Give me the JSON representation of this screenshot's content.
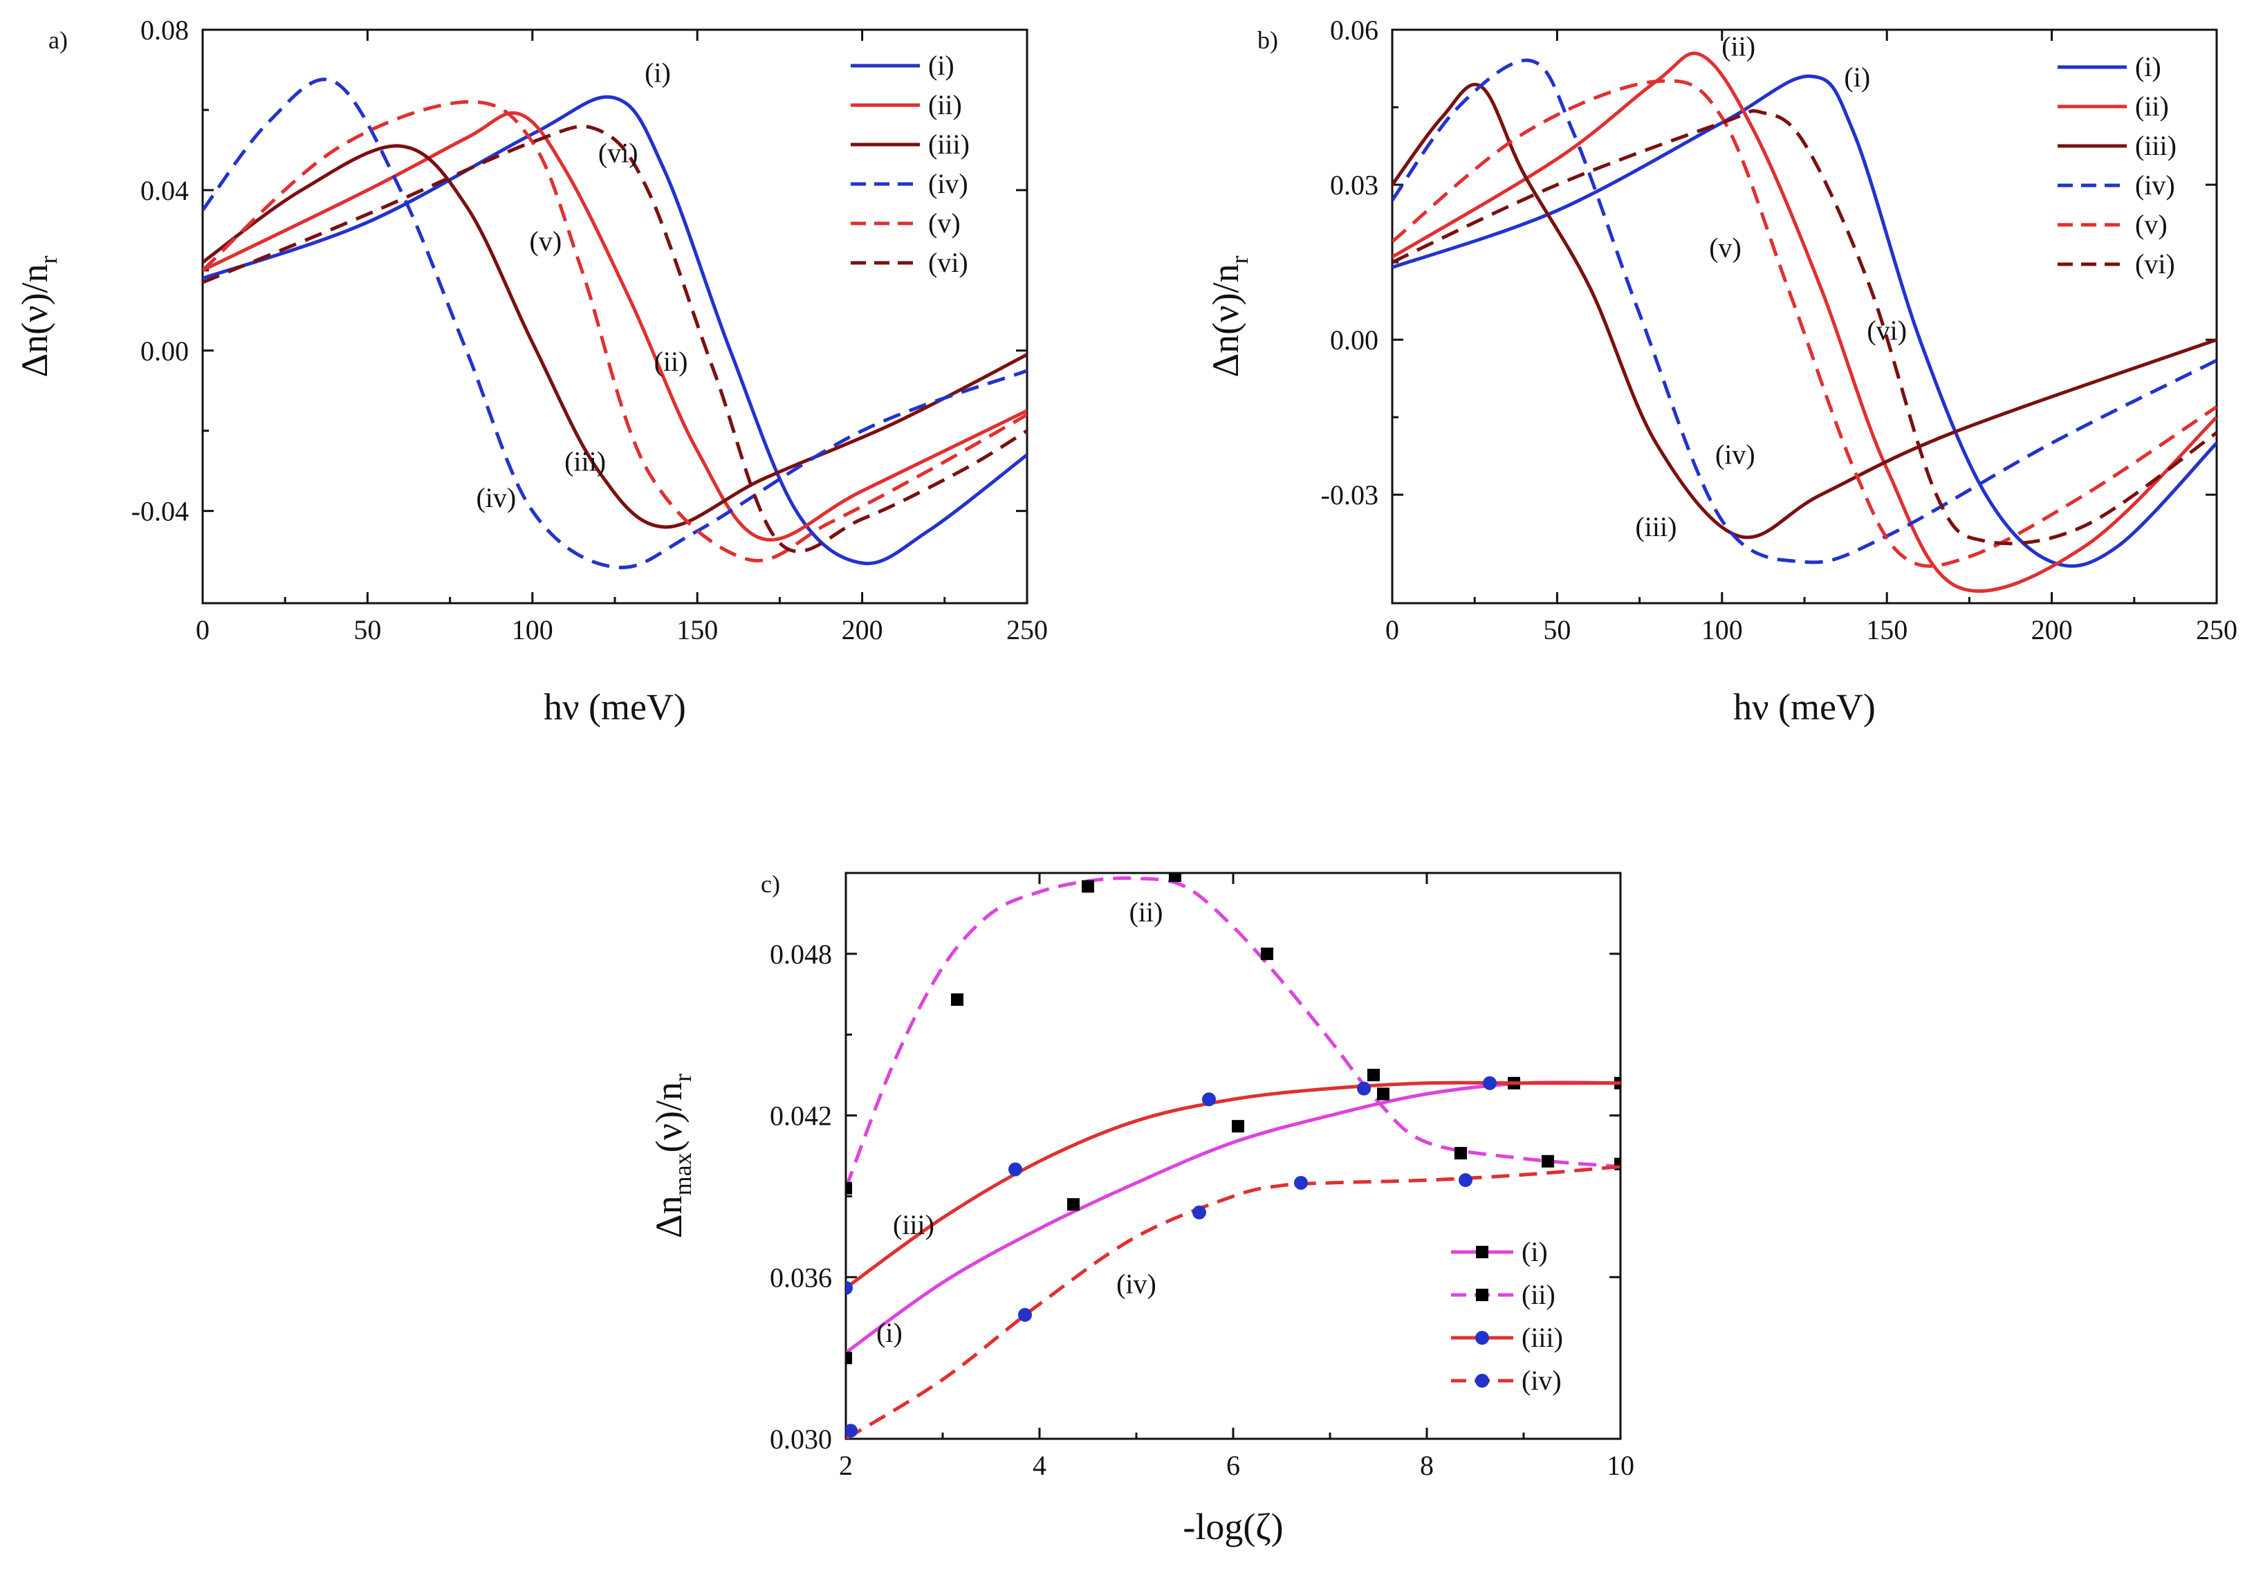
{
  "colors": {
    "blue": "#2233cc",
    "red": "#e03030",
    "darkred": "#7a1010",
    "magenta": "#dd44dd",
    "black": "#000000"
  },
  "chart_data": [
    {
      "panel": "a)",
      "type": "line",
      "xlabel": "hν (meV)",
      "ylabel": "Δn(ν)/n",
      "ylabel_sub": "r",
      "xlim": [
        0,
        250
      ],
      "ylim": [
        -0.063,
        0.08
      ],
      "xticks": [
        0,
        50,
        100,
        150,
        200,
        250
      ],
      "xtick_labels": [
        "0",
        "50",
        "100",
        "150",
        "200",
        "250"
      ],
      "yticks": [
        -0.04,
        0.0,
        0.04,
        0.08
      ],
      "ytick_labels": [
        "-0.04",
        "0.00",
        "0.04",
        "0.08"
      ],
      "legend_position": "top-right",
      "series": [
        {
          "name": "(i)",
          "color": "blue",
          "dash": false,
          "x": [
            0,
            50,
            100,
            125,
            140,
            160,
            180,
            200,
            220,
            250
          ],
          "y": [
            0.018,
            0.032,
            0.054,
            0.063,
            0.045,
            0.0,
            -0.04,
            -0.053,
            -0.045,
            -0.026
          ]
        },
        {
          "name": "(ii)",
          "color": "red",
          "dash": false,
          "x": [
            0,
            50,
            80,
            96,
            110,
            130,
            150,
            170,
            200,
            250
          ],
          "y": [
            0.02,
            0.04,
            0.053,
            0.059,
            0.045,
            0.012,
            -0.025,
            -0.047,
            -0.035,
            -0.015
          ]
        },
        {
          "name": "(iii)",
          "color": "darkred",
          "dash": false,
          "x": [
            0,
            30,
            60,
            80,
            100,
            120,
            140,
            170,
            210,
            250
          ],
          "y": [
            0.022,
            0.04,
            0.051,
            0.036,
            0.002,
            -0.03,
            -0.044,
            -0.032,
            -0.018,
            -0.001
          ]
        },
        {
          "name": "(iv)",
          "color": "blue",
          "dash": true,
          "x": [
            0,
            20,
            40,
            60,
            80,
            100,
            125,
            150,
            200,
            250
          ],
          "y": [
            0.035,
            0.057,
            0.067,
            0.04,
            0.0,
            -0.04,
            -0.054,
            -0.045,
            -0.02,
            -0.005
          ]
        },
        {
          "name": "(v)",
          "color": "red",
          "dash": true,
          "x": [
            0,
            40,
            80,
            100,
            115,
            135,
            165,
            190,
            220,
            250
          ],
          "y": [
            0.02,
            0.05,
            0.062,
            0.052,
            0.02,
            -0.03,
            -0.052,
            -0.043,
            -0.03,
            -0.016
          ]
        },
        {
          "name": "(vi)",
          "color": "darkred",
          "dash": true,
          "x": [
            0,
            50,
            100,
            120,
            135,
            155,
            175,
            200,
            230,
            250
          ],
          "y": [
            0.017,
            0.034,
            0.052,
            0.055,
            0.04,
            -0.005,
            -0.048,
            -0.042,
            -0.03,
            -0.02
          ]
        }
      ],
      "annotations": [
        {
          "text": "(i)",
          "x": 138,
          "y": 0.067
        },
        {
          "text": "(vi)",
          "x": 126,
          "y": 0.047
        },
        {
          "text": "(v)",
          "x": 104,
          "y": 0.025
        },
        {
          "text": "(ii)",
          "x": 142,
          "y": -0.005
        },
        {
          "text": "(iii)",
          "x": 116,
          "y": -0.03
        },
        {
          "text": "(iv)",
          "x": 89,
          "y": -0.039
        }
      ]
    },
    {
      "panel": "b)",
      "type": "line",
      "xlabel": "hν (meV)",
      "ylabel": "Δn(ν)/n",
      "ylabel_sub": "r",
      "xlim": [
        0,
        250
      ],
      "ylim": [
        -0.051,
        0.06
      ],
      "xticks": [
        0,
        50,
        100,
        150,
        200,
        250
      ],
      "xtick_labels": [
        "0",
        "50",
        "100",
        "150",
        "200",
        "250"
      ],
      "yticks": [
        -0.03,
        0.0,
        0.03,
        0.06
      ],
      "ytick_labels": [
        "-0.03",
        "0.00",
        "0.03",
        "0.06"
      ],
      "legend_position": "top-right",
      "series": [
        {
          "name": "(i)",
          "color": "blue",
          "dash": false,
          "x": [
            0,
            50,
            100,
            127,
            140,
            160,
            180,
            200,
            220,
            250
          ],
          "y": [
            0.014,
            0.025,
            0.042,
            0.051,
            0.04,
            0.0,
            -0.03,
            -0.043,
            -0.04,
            -0.02
          ]
        },
        {
          "name": "(ii)",
          "color": "red",
          "dash": false,
          "x": [
            0,
            50,
            80,
            94,
            110,
            130,
            150,
            172,
            210,
            250
          ],
          "y": [
            0.016,
            0.035,
            0.05,
            0.055,
            0.04,
            0.01,
            -0.025,
            -0.048,
            -0.04,
            -0.015
          ]
        },
        {
          "name": "(iii)",
          "color": "darkred",
          "dash": false,
          "x": [
            0,
            15,
            27,
            40,
            60,
            80,
            105,
            130,
            170,
            250
          ],
          "y": [
            0.03,
            0.043,
            0.049,
            0.032,
            0.01,
            -0.02,
            -0.038,
            -0.03,
            -0.018,
            0.0
          ]
        },
        {
          "name": "(iv)",
          "color": "blue",
          "dash": true,
          "x": [
            0,
            20,
            42,
            55,
            75,
            100,
            125,
            150,
            200,
            250
          ],
          "y": [
            0.027,
            0.045,
            0.054,
            0.04,
            0.005,
            -0.035,
            -0.043,
            -0.038,
            -0.02,
            -0.004
          ]
        },
        {
          "name": "(v)",
          "color": "red",
          "dash": true,
          "x": [
            0,
            40,
            80,
            100,
            120,
            140,
            155,
            175,
            210,
            250
          ],
          "y": [
            0.019,
            0.04,
            0.05,
            0.043,
            0.01,
            -0.025,
            -0.042,
            -0.042,
            -0.03,
            -0.013
          ]
        },
        {
          "name": "(vi)",
          "color": "darkred",
          "dash": true,
          "x": [
            0,
            50,
            100,
            112,
            125,
            145,
            165,
            180,
            210,
            250
          ],
          "y": [
            0.015,
            0.03,
            0.042,
            0.044,
            0.038,
            0.01,
            -0.03,
            -0.039,
            -0.036,
            -0.018
          ]
        }
      ],
      "annotations": [
        {
          "text": "(ii)",
          "x": 105,
          "y": 0.055
        },
        {
          "text": "(i)",
          "x": 141,
          "y": 0.049
        },
        {
          "text": "(v)",
          "x": 101,
          "y": 0.016
        },
        {
          "text": "(vi)",
          "x": 150,
          "y": 0.0
        },
        {
          "text": "(iv)",
          "x": 104,
          "y": -0.024
        },
        {
          "text": "(iii)",
          "x": 80,
          "y": -0.038
        }
      ]
    },
    {
      "panel": "c)",
      "type": "line",
      "xlabel": "-log(ζ)",
      "ylabel": "Δn",
      "ylabel_sub": "max",
      "ylabel_rest": "(ν)/n",
      "ylabel_sub2": "r",
      "xlim": [
        2,
        10
      ],
      "ylim": [
        0.03,
        0.051
      ],
      "xticks": [
        2,
        4,
        6,
        8,
        10
      ],
      "xtick_labels": [
        "2",
        "4",
        "6",
        "8",
        "10"
      ],
      "yticks": [
        0.03,
        0.036,
        0.042,
        0.048
      ],
      "ytick_labels": [
        "0.030",
        "0.036",
        "0.042",
        "0.048"
      ],
      "legend_position": "bottom-right",
      "series": [
        {
          "name": "(i)",
          "color": "magenta",
          "dash": false,
          "marker": "square",
          "curve_x": [
            2,
            3,
            4,
            5,
            6,
            7,
            8,
            9,
            10
          ],
          "curve_y": [
            0.0332,
            0.0358,
            0.0378,
            0.0395,
            0.041,
            0.042,
            0.0428,
            0.0432,
            0.0432
          ],
          "points_x": [
            2.0,
            4.35,
            6.05,
            7.55,
            8.9,
            10.0
          ],
          "points_y": [
            0.033,
            0.0387,
            0.0416,
            0.0428,
            0.0432,
            0.0432
          ]
        },
        {
          "name": "(ii)",
          "color": "magenta",
          "dash": true,
          "marker": "square",
          "curve_x": [
            2,
            2.5,
            3,
            3.5,
            4,
            4.5,
            5,
            5.5,
            6,
            6.5,
            7,
            7.5,
            8,
            9,
            10
          ],
          "curve_y": [
            0.0393,
            0.044,
            0.0475,
            0.0495,
            0.0503,
            0.0507,
            0.0508,
            0.0505,
            0.049,
            0.047,
            0.0448,
            0.0425,
            0.041,
            0.0404,
            0.0401
          ],
          "points_x": [
            2.0,
            3.15,
            4.5,
            5.4,
            6.35,
            7.45,
            7.55,
            8.35,
            9.25,
            10.0
          ],
          "points_y": [
            0.0393,
            0.0463,
            0.0505,
            0.0509,
            0.048,
            0.0435,
            0.0428,
            0.0406,
            0.0403,
            0.0402
          ]
        },
        {
          "name": "(iii)",
          "color": "red",
          "dash": false,
          "marker": "circle",
          "curve_x": [
            2,
            3,
            4,
            5,
            6,
            7,
            8,
            9,
            10
          ],
          "curve_y": [
            0.0356,
            0.0382,
            0.0403,
            0.0418,
            0.0426,
            0.043,
            0.0432,
            0.0432,
            0.0432
          ],
          "points_x": [
            2.0,
            3.75,
            5.75,
            7.35,
            8.65
          ],
          "points_y": [
            0.0356,
            0.04,
            0.0426,
            0.043,
            0.0432
          ]
        },
        {
          "name": "(iv)",
          "color": "red",
          "dash": true,
          "marker": "circle",
          "curve_x": [
            2,
            3,
            4,
            5,
            6,
            6.5,
            7,
            8,
            9,
            10
          ],
          "curve_y": [
            0.03,
            0.0322,
            0.035,
            0.0375,
            0.039,
            0.0394,
            0.0395,
            0.0396,
            0.0398,
            0.0401
          ],
          "points_x": [
            2.05,
            3.85,
            5.65,
            6.7,
            8.4
          ],
          "points_y": [
            0.0303,
            0.0346,
            0.0384,
            0.0395,
            0.0396
          ]
        }
      ],
      "annotations": [
        {
          "text": "(ii)",
          "x": 5.1,
          "y": 0.0492
        },
        {
          "text": "(iii)",
          "x": 2.7,
          "y": 0.0376
        },
        {
          "text": "(iv)",
          "x": 5.0,
          "y": 0.0354
        },
        {
          "text": "(i)",
          "x": 2.45,
          "y": 0.0336
        }
      ]
    }
  ]
}
